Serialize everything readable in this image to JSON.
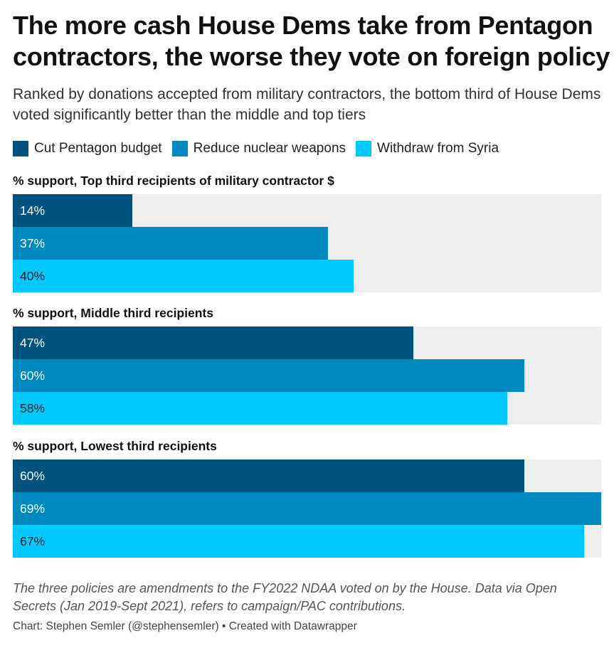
{
  "title": "The more cash House Dems take from Pentagon contractors, the worse they vote on foreign policy",
  "subtitle": "Ranked by donations accepted from military contractors, the bottom third of House Dems voted significantly better than the middle and top tiers",
  "legend": [
    {
      "label": "Cut Pentagon budget",
      "color": "#00527f"
    },
    {
      "label": "Reduce nuclear weapons",
      "color": "#0089bf"
    },
    {
      "label": "Withdraw from Syria",
      "color": "#00c9ff"
    }
  ],
  "chart_data": {
    "type": "bar",
    "orientation": "horizontal",
    "xlim": [
      0,
      69
    ],
    "series_names": [
      "Cut Pentagon budget",
      "Reduce nuclear weapons",
      "Withdraw from Syria"
    ],
    "series_colors": [
      "#00527f",
      "#0089bf",
      "#00c9ff"
    ],
    "label_colors": [
      "#ffffff",
      "#ffffff",
      "#1a1a1a"
    ],
    "panels": [
      {
        "title": "% support, Top third recipients of military contractor $",
        "values": [
          14,
          37,
          40
        ],
        "labels": [
          "14%",
          "37%",
          "40%"
        ]
      },
      {
        "title": "% support, Middle third recipients",
        "values": [
          47,
          60,
          58
        ],
        "labels": [
          "47%",
          "60%",
          "58%"
        ]
      },
      {
        "title": "% support, Lowest third recipients",
        "values": [
          60,
          69,
          67
        ],
        "labels": [
          "60%",
          "69%",
          "67%"
        ]
      }
    ]
  },
  "notes": "The three policies are amendments to the FY2022 NDAA voted on by the House. Data via Open Secrets (Jan 2019-Sept 2021), refers to campaign/PAC contributions.",
  "credit": "Chart: Stephen Semler (@stephensemler) • Created with Datawrapper"
}
